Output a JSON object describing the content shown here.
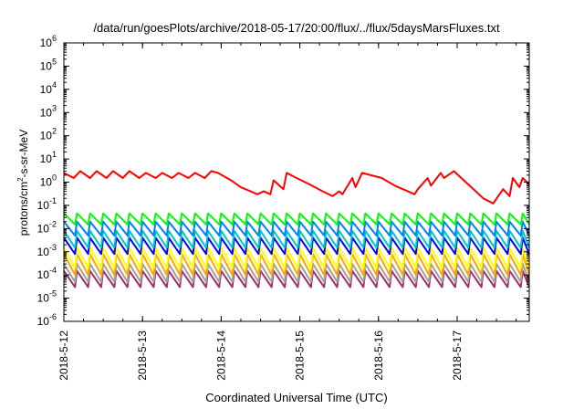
{
  "chart_data": {
    "type": "line",
    "title": "/data/run/goesPlots/archive/2018-05-17/20:00/flux/../flux/5daysMarsFluxes.txt",
    "xlabel": "Coordinated Universal Time (UTC)",
    "ylabel_parts": [
      "protons/cm",
      "2",
      "-s-sr-MeV"
    ],
    "y_scale": "log",
    "ylim": [
      1e-06,
      1000000.0
    ],
    "y_ticks": [
      {
        "exp": "-6",
        "value": 1e-06
      },
      {
        "exp": "-5",
        "value": 1e-05
      },
      {
        "exp": "-4",
        "value": 0.0001
      },
      {
        "exp": "-3",
        "value": 0.001
      },
      {
        "exp": "-2",
        "value": 0.01
      },
      {
        "exp": "-1",
        "value": 0.1
      },
      {
        "exp": "0",
        "value": 1
      },
      {
        "exp": "1",
        "value": 10
      },
      {
        "exp": "2",
        "value": 100
      },
      {
        "exp": "3",
        "value": 1000
      },
      {
        "exp": "4",
        "value": 10000
      },
      {
        "exp": "5",
        "value": 100000
      },
      {
        "exp": "6",
        "value": 1000000
      }
    ],
    "y_tick_base": "10",
    "xlim": [
      "2018-05-12T00:00",
      "2018-05-17T22:00"
    ],
    "x_ticks": [
      {
        "label": "2018-5-12",
        "date": "2018-05-12T00:00"
      },
      {
        "label": "2018-5-13",
        "date": "2018-05-13T00:00"
      },
      {
        "label": "2018-5-14",
        "date": "2018-05-14T00:00"
      },
      {
        "label": "2018-5-15",
        "date": "2018-05-15T00:00"
      },
      {
        "label": "2018-5-16",
        "date": "2018-05-16T00:00"
      },
      {
        "label": "2018-5-17",
        "date": "2018-05-17T00:00"
      }
    ],
    "grid": false,
    "series": [
      {
        "color": "#ff0000",
        "x": [
          "2018-05-12T00:00",
          "2018-05-12T03:00",
          "2018-05-12T05:00",
          "2018-05-12T08:00",
          "2018-05-12T10:00",
          "2018-05-12T13:00",
          "2018-05-12T15:00",
          "2018-05-12T18:00",
          "2018-05-12T20:00",
          "2018-05-12T23:00",
          "2018-05-13T01:00",
          "2018-05-13T04:00",
          "2018-05-13T06:00",
          "2018-05-13T09:00",
          "2018-05-13T11:00",
          "2018-05-13T14:00",
          "2018-05-13T16:00",
          "2018-05-13T19:00",
          "2018-05-13T21:00",
          "2018-05-13T23:00",
          "2018-05-14T03:00",
          "2018-05-14T06:00",
          "2018-05-14T09:00",
          "2018-05-14T11:00",
          "2018-05-14T13:00",
          "2018-05-14T15:00",
          "2018-05-14T16:00",
          "2018-05-14T19:00",
          "2018-05-14T20:00",
          "2018-05-14T23:00",
          "2018-05-15T03:00",
          "2018-05-15T07:00",
          "2018-05-15T10:00",
          "2018-05-15T12:00",
          "2018-05-15T13:00",
          "2018-05-15T16:00",
          "2018-05-15T17:00",
          "2018-05-15T19:00",
          "2018-05-16T01:00",
          "2018-05-16T05:00",
          "2018-05-16T09:00",
          "2018-05-16T11:00",
          "2018-05-16T12:00",
          "2018-05-16T15:00",
          "2018-05-16T16:00",
          "2018-05-16T19:00",
          "2018-05-16T20:00",
          "2018-05-16T23:00",
          "2018-05-17T02:00",
          "2018-05-17T05:00",
          "2018-05-17T08:00",
          "2018-05-17T11:00",
          "2018-05-17T14:00",
          "2018-05-17T16:00",
          "2018-05-17T17:00",
          "2018-05-17T19:00",
          "2018-05-17T20:00",
          "2018-05-17T22:00"
        ],
        "y": [
          2.5,
          1.5,
          3,
          1.5,
          3,
          1.5,
          3,
          1.5,
          3,
          1.5,
          2.5,
          1.5,
          2.5,
          1.5,
          2.5,
          1.5,
          2.5,
          1.5,
          3,
          2.5,
          1.2,
          0.6,
          0.4,
          0.3,
          0.4,
          0.3,
          1.2,
          0.5,
          2.5,
          1.5,
          0.8,
          0.4,
          0.25,
          0.4,
          0.3,
          1.5,
          0.6,
          2.5,
          1.5,
          0.7,
          0.4,
          0.3,
          0.5,
          1.5,
          0.7,
          2.5,
          1.5,
          3,
          1.2,
          0.5,
          0.2,
          0.12,
          0.5,
          0.25,
          1.5,
          0.6,
          1.5,
          0.8
        ]
      },
      {
        "color": "#00ff00",
        "base": 0.045,
        "low": 0.015,
        "period_hours": 4
      },
      {
        "color": "#0080ff",
        "base": 0.02,
        "low": 0.005,
        "period_hours": 4
      },
      {
        "color": "#00c8c8",
        "base": 0.008,
        "low": 0.0015,
        "period_hours": 4
      },
      {
        "color": "#0000ff",
        "base": 0.004,
        "low": 0.0008,
        "period_hours": 4
      },
      {
        "color": "#ffff00",
        "base": 0.0015,
        "low": 0.0002,
        "period_hours": 4
      },
      {
        "color": "#ffa500",
        "base": 0.0008,
        "low": 0.0001,
        "period_hours": 4
      },
      {
        "color": "#a0a0a0",
        "base": 0.0003,
        "low": 5e-05,
        "period_hours": 4
      },
      {
        "color": "#a0306a",
        "base": 0.00015,
        "low": 3e-05,
        "period_hours": 4
      }
    ]
  }
}
